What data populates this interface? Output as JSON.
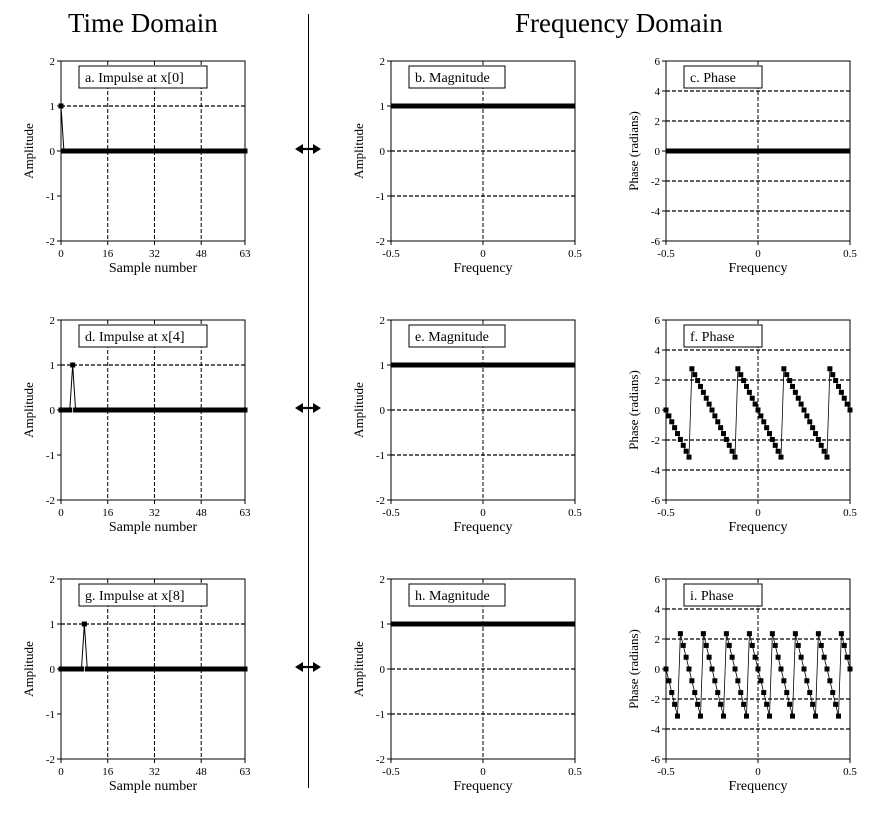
{
  "headings": {
    "time_domain": "Time Domain",
    "frequency_domain": "Frequency Domain"
  },
  "pair_symbol": "↔",
  "chart_data": [
    {
      "id": "a",
      "type": "line",
      "title": "a.  Impulse at x[0]",
      "xlabel": "Sample number",
      "ylabel": "Amplitude",
      "xlim": [
        0,
        63
      ],
      "ylim": [
        -2,
        2
      ],
      "xticks": [
        0,
        16,
        32,
        48,
        63
      ],
      "yticks": [
        -2,
        -1,
        0,
        1,
        2
      ],
      "vgrid": [
        16,
        32,
        48
      ],
      "hgrid": [
        1
      ],
      "grid": true,
      "series": [
        {
          "style": "line-with-markers",
          "x": [
            0,
            1,
            2,
            3,
            4,
            5,
            6,
            7,
            8,
            9,
            10,
            11,
            12,
            13,
            14,
            15,
            16,
            17,
            18,
            19,
            20,
            21,
            22,
            23,
            24,
            25,
            26,
            27,
            28,
            29,
            30,
            31,
            32,
            33,
            34,
            35,
            36,
            37,
            38,
            39,
            40,
            41,
            42,
            43,
            44,
            45,
            46,
            47,
            48,
            49,
            50,
            51,
            52,
            53,
            54,
            55,
            56,
            57,
            58,
            59,
            60,
            61,
            62,
            63
          ],
          "impulse_at": 0
        }
      ]
    },
    {
      "id": "b",
      "type": "line",
      "title": "b.  Magnitude",
      "xlabel": "Frequency",
      "ylabel": "Amplitude",
      "xlim": [
        -0.5,
        0.5
      ],
      "ylim": [
        -2,
        2
      ],
      "xticks": [
        -0.5,
        0,
        0.5
      ],
      "yticks": [
        -2,
        -1,
        0,
        1,
        2
      ],
      "vgrid": [
        0
      ],
      "hgrid": [
        0,
        -1
      ],
      "grid": true,
      "series": [
        {
          "style": "thick-line",
          "x": [
            -0.5,
            0.5
          ],
          "y": [
            1,
            1
          ]
        }
      ]
    },
    {
      "id": "c",
      "type": "line",
      "title": "c.  Phase",
      "xlabel": "Frequency",
      "ylabel": "Phase (radians)",
      "xlim": [
        -0.5,
        0.5
      ],
      "ylim": [
        -6,
        6
      ],
      "xticks": [
        -0.5,
        0,
        0.5
      ],
      "yticks": [
        -6,
        -4,
        -2,
        0,
        2,
        4,
        6
      ],
      "vgrid": [
        0
      ],
      "hgrid": [
        4,
        2,
        -2,
        -4
      ],
      "grid": true,
      "series": [
        {
          "style": "thick-line",
          "x": [
            -0.5,
            0.5
          ],
          "y": [
            0,
            0
          ]
        }
      ]
    },
    {
      "id": "d",
      "type": "line",
      "title": "d.  Impulse at x[4]",
      "xlabel": "Sample number",
      "ylabel": "Amplitude",
      "xlim": [
        0,
        63
      ],
      "ylim": [
        -2,
        2
      ],
      "xticks": [
        0,
        16,
        32,
        48,
        63
      ],
      "yticks": [
        -2,
        -1,
        0,
        1,
        2
      ],
      "vgrid": [
        16,
        32,
        48
      ],
      "hgrid": [
        1
      ],
      "grid": true,
      "series": [
        {
          "style": "line-with-markers",
          "x": [
            0,
            1,
            2,
            3,
            4,
            5,
            6,
            7,
            8,
            9,
            10,
            11,
            12,
            13,
            14,
            15,
            16,
            17,
            18,
            19,
            20,
            21,
            22,
            23,
            24,
            25,
            26,
            27,
            28,
            29,
            30,
            31,
            32,
            33,
            34,
            35,
            36,
            37,
            38,
            39,
            40,
            41,
            42,
            43,
            44,
            45,
            46,
            47,
            48,
            49,
            50,
            51,
            52,
            53,
            54,
            55,
            56,
            57,
            58,
            59,
            60,
            61,
            62,
            63
          ],
          "impulse_at": 4
        }
      ]
    },
    {
      "id": "e",
      "type": "line",
      "title": "e.  Magnitude",
      "xlabel": "Frequency",
      "ylabel": "Amplitude",
      "xlim": [
        -0.5,
        0.5
      ],
      "ylim": [
        -2,
        2
      ],
      "xticks": [
        -0.5,
        0,
        0.5
      ],
      "yticks": [
        -2,
        -1,
        0,
        1,
        2
      ],
      "vgrid": [
        0
      ],
      "hgrid": [
        0,
        -1
      ],
      "grid": true,
      "series": [
        {
          "style": "thick-line",
          "x": [
            -0.5,
            0.5
          ],
          "y": [
            1,
            1
          ]
        }
      ]
    },
    {
      "id": "f",
      "type": "line",
      "title": "f.  Phase",
      "xlabel": "Frequency",
      "ylabel": "Phase (radians)",
      "xlim": [
        -0.5,
        0.5
      ],
      "ylim": [
        -6,
        6
      ],
      "xticks": [
        -0.5,
        0,
        0.5
      ],
      "yticks": [
        -6,
        -4,
        -2,
        0,
        2,
        4,
        6
      ],
      "vgrid": [
        0
      ],
      "hgrid": [
        4,
        2,
        -2,
        -4
      ],
      "grid": true,
      "series": [
        {
          "style": "wrapped-phase-markers",
          "delay_samples": 4,
          "freq_step": 0.015625
        }
      ]
    },
    {
      "id": "g",
      "type": "line",
      "title": "g.  Impulse at x[8]",
      "xlabel": "Sample number",
      "ylabel": "Amplitude",
      "xlim": [
        0,
        63
      ],
      "ylim": [
        -2,
        2
      ],
      "xticks": [
        0,
        16,
        32,
        48,
        63
      ],
      "yticks": [
        -2,
        -1,
        0,
        1,
        2
      ],
      "vgrid": [
        16,
        32,
        48
      ],
      "hgrid": [
        1
      ],
      "grid": true,
      "series": [
        {
          "style": "line-with-markers",
          "x": [
            0,
            1,
            2,
            3,
            4,
            5,
            6,
            7,
            8,
            9,
            10,
            11,
            12,
            13,
            14,
            15,
            16,
            17,
            18,
            19,
            20,
            21,
            22,
            23,
            24,
            25,
            26,
            27,
            28,
            29,
            30,
            31,
            32,
            33,
            34,
            35,
            36,
            37,
            38,
            39,
            40,
            41,
            42,
            43,
            44,
            45,
            46,
            47,
            48,
            49,
            50,
            51,
            52,
            53,
            54,
            55,
            56,
            57,
            58,
            59,
            60,
            61,
            62,
            63
          ],
          "impulse_at": 8
        }
      ]
    },
    {
      "id": "h",
      "type": "line",
      "title": "h.  Magnitude",
      "xlabel": "Frequency",
      "ylabel": "Amplitude",
      "xlim": [
        -0.5,
        0.5
      ],
      "ylim": [
        -2,
        2
      ],
      "xticks": [
        -0.5,
        0,
        0.5
      ],
      "yticks": [
        -2,
        -1,
        0,
        1,
        2
      ],
      "vgrid": [
        0
      ],
      "hgrid": [
        0,
        -1
      ],
      "grid": true,
      "series": [
        {
          "style": "thick-line",
          "x": [
            -0.5,
            0.5
          ],
          "y": [
            1,
            1
          ]
        }
      ]
    },
    {
      "id": "i",
      "type": "line",
      "title": "i.  Phase",
      "xlabel": "Frequency",
      "ylabel": "Phase (radians)",
      "xlim": [
        -0.5,
        0.5
      ],
      "ylim": [
        -6,
        6
      ],
      "xticks": [
        -0.5,
        0,
        0.5
      ],
      "yticks": [
        -6,
        -4,
        -2,
        0,
        2,
        4,
        6
      ],
      "vgrid": [
        0
      ],
      "hgrid": [
        4,
        2,
        -2,
        -4
      ],
      "grid": true,
      "series": [
        {
          "style": "wrapped-phase-markers",
          "delay_samples": 8,
          "freq_step": 0.015625
        }
      ]
    }
  ]
}
